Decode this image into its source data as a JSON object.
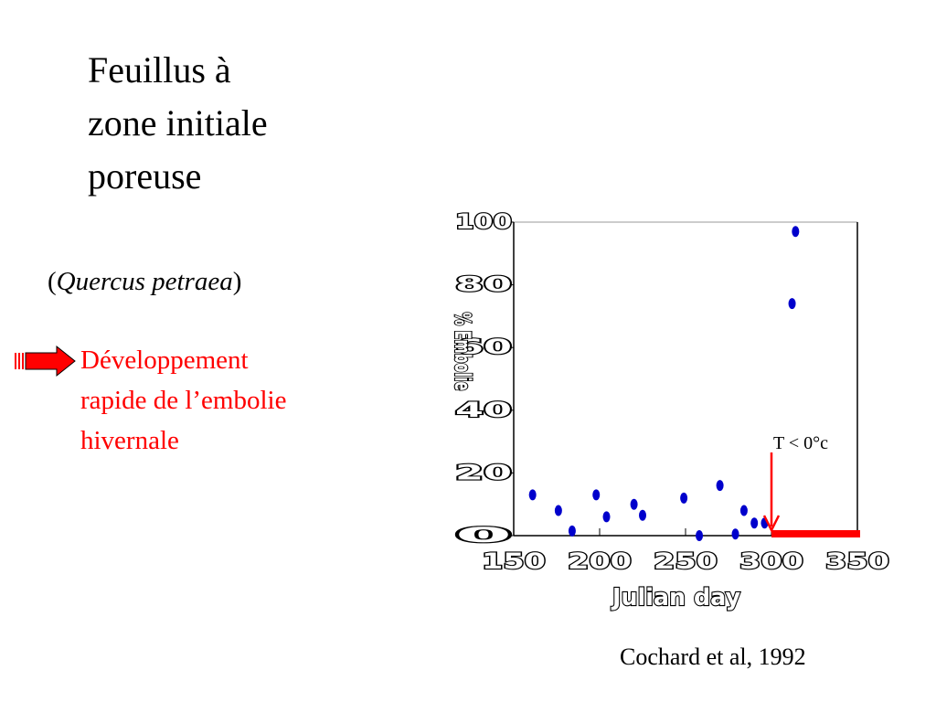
{
  "title_lines": [
    "Feuillus à",
    "zone initiale",
    "poreuse"
  ],
  "species": {
    "open": "(",
    "name": "Quercus petraea",
    "close": ")"
  },
  "bullet_lines": [
    "Développement",
    "rapide de l’embolie",
    "hivernale"
  ],
  "citation": "Cochard et al, 1992",
  "colors": {
    "accent": "#ff0000",
    "point": "#0000cc",
    "frame": "#000000"
  },
  "icons": {
    "bullet": "red-arrow-icon"
  },
  "chart_data": {
    "type": "scatter",
    "xlabel": "Julian day",
    "ylabel": "% Embolie",
    "x_ticks": [
      150,
      200,
      250,
      300,
      350
    ],
    "y_ticks": [
      0,
      20,
      40,
      60,
      80,
      100
    ],
    "xlim": [
      150,
      350
    ],
    "ylim": [
      0,
      100
    ],
    "grid": false,
    "points": [
      {
        "x": 161,
        "y": 13
      },
      {
        "x": 176,
        "y": 8
      },
      {
        "x": 184,
        "y": 1.5
      },
      {
        "x": 198,
        "y": 13
      },
      {
        "x": 204,
        "y": 6
      },
      {
        "x": 220,
        "y": 10
      },
      {
        "x": 225,
        "y": 6.5
      },
      {
        "x": 249,
        "y": 12
      },
      {
        "x": 258,
        "y": 0
      },
      {
        "x": 270,
        "y": 16
      },
      {
        "x": 279,
        "y": 0.5
      },
      {
        "x": 284,
        "y": 8
      },
      {
        "x": 290,
        "y": 4
      },
      {
        "x": 296,
        "y": 4
      },
      {
        "x": 312,
        "y": 74
      },
      {
        "x": 314,
        "y": 97
      }
    ],
    "annotation": {
      "label": "T < 0°c",
      "x": 300
    },
    "freeze_period": [
      300,
      350
    ]
  }
}
